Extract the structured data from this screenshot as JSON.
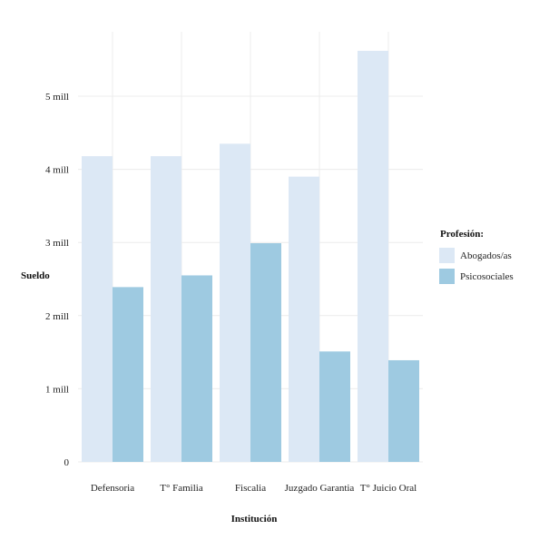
{
  "chart_data": {
    "type": "bar",
    "xlabel": "Institución",
    "ylabel": "Sueldo",
    "categories": [
      "Defensoria",
      "T° Familia",
      "Fiscalia",
      "Juzgado Garantia",
      "T° Juicio Oral"
    ],
    "series": [
      {
        "name": "Abogados/as",
        "values": [
          4.18,
          4.18,
          4.35,
          3.9,
          5.62
        ],
        "color": "#dce8f5"
      },
      {
        "name": "Psicosociales",
        "values": [
          2.39,
          2.55,
          2.99,
          1.51,
          1.39
        ],
        "color": "#9ecae1"
      }
    ],
    "ylim": [
      0,
      5.62
    ],
    "yticks": [
      {
        "value": 0,
        "label": "0"
      },
      {
        "value": 1,
        "label": "1 mill"
      },
      {
        "value": 2,
        "label": "2 mill"
      },
      {
        "value": 3,
        "label": "3 mill"
      },
      {
        "value": 4,
        "label": "4 mill"
      },
      {
        "value": 5,
        "label": "5 mill"
      }
    ],
    "grid": true,
    "legend": {
      "title": "Profesión:",
      "placement": "right"
    }
  }
}
